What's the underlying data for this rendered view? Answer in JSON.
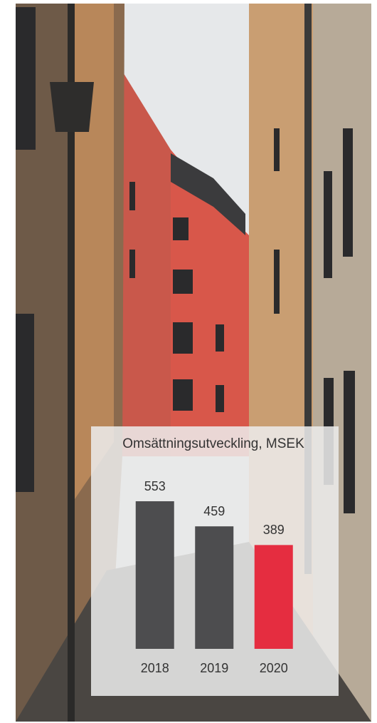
{
  "chart_data": {
    "type": "bar",
    "title": "Omsättningsutveckling, MSEK",
    "categories": [
      "2018",
      "2019",
      "2020"
    ],
    "values": [
      553,
      459,
      389
    ],
    "colors": [
      "#4d4d4f",
      "#4d4d4f",
      "#e52d40"
    ]
  }
}
